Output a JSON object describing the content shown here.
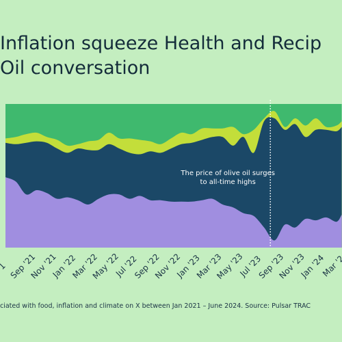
{
  "title_lines": [
    "Inflation squeeze Health and Recip",
    "Oil conversation"
  ],
  "source_text": "ciated with food, inflation and climate on X between Jan 2021 – June 2024. Source: Pulsar TRAC",
  "colors": {
    "background": "#c4eec0",
    "layer_top": "#3fb96e",
    "layer_upper": "#c3de3a",
    "layer_middle": "#1b4867",
    "layer_bottom": "#a08ee0",
    "annotation_line": "#ffffff"
  },
  "chart_data": {
    "type": "area",
    "stacked": true,
    "normalized": true,
    "xlabel": "",
    "ylabel": "",
    "ylim": [
      0,
      1
    ],
    "grid": false,
    "legend": "none",
    "x_tick_labels": [
      "1",
      "Sep '21",
      "Nov '21",
      "Jan '22",
      "Mar '22",
      "May '22",
      "Jul '22",
      "Sep '22",
      "Nov '22",
      "Jan '23",
      "Mar '23",
      "May '23",
      "Jul '23",
      "Sep '23",
      "Nov '23",
      "Jan '24",
      "Mar '2"
    ],
    "x": [
      0,
      0.5,
      1,
      1.5,
      2,
      2.5,
      3,
      3.5,
      4,
      4.5,
      5,
      5.5,
      6,
      6.5,
      7,
      7.5,
      8,
      8.5,
      9,
      9.5,
      10,
      10.5,
      11,
      11.5,
      12,
      12.5,
      13,
      13.5,
      14,
      14.5,
      15,
      15.5,
      16,
      16.25
    ],
    "series": [
      {
        "values": [
          0.49,
          0.46,
          0.37,
          0.4,
          0.38,
          0.34,
          0.35,
          0.33,
          0.3,
          0.34,
          0.37,
          0.37,
          0.34,
          0.36,
          0.33,
          0.33,
          0.32,
          0.32,
          0.32,
          0.33,
          0.34,
          0.3,
          0.28,
          0.24,
          0.22,
          0.14,
          0.05,
          0.16,
          0.14,
          0.2,
          0.19,
          0.21,
          0.18,
          0.23
        ]
      },
      {
        "values": [
          0.24,
          0.26,
          0.36,
          0.34,
          0.35,
          0.35,
          0.31,
          0.36,
          0.38,
          0.34,
          0.35,
          0.32,
          0.32,
          0.29,
          0.34,
          0.33,
          0.37,
          0.4,
          0.41,
          0.42,
          0.43,
          0.47,
          0.43,
          0.53,
          0.44,
          0.74,
          0.85,
          0.66,
          0.72,
          0.57,
          0.63,
          0.61,
          0.63,
          0.61
        ]
      },
      {
        "values": [
          0.03,
          0.05,
          0.06,
          0.06,
          0.04,
          0.06,
          0.05,
          0.03,
          0.06,
          0.07,
          0.08,
          0.07,
          0.1,
          0.1,
          0.07,
          0.06,
          0.07,
          0.08,
          0.06,
          0.08,
          0.06,
          0.06,
          0.13,
          0.02,
          0.16,
          0.02,
          0.05,
          0.02,
          0.04,
          0.08,
          0.08,
          0.02,
          0.04,
          0.04
        ]
      },
      {
        "values": [
          0.24,
          0.23,
          0.21,
          0.2,
          0.23,
          0.25,
          0.29,
          0.28,
          0.26,
          0.25,
          0.2,
          0.24,
          0.24,
          0.25,
          0.26,
          0.28,
          0.24,
          0.2,
          0.21,
          0.17,
          0.17,
          0.17,
          0.16,
          0.21,
          0.18,
          0.1,
          0.05,
          0.16,
          0.1,
          0.15,
          0.1,
          0.16,
          0.15,
          0.12
        ]
      }
    ],
    "annotation": {
      "x": 12.8,
      "lines": [
        "The price of olive oil surges",
        "to all-time highs"
      ]
    }
  }
}
